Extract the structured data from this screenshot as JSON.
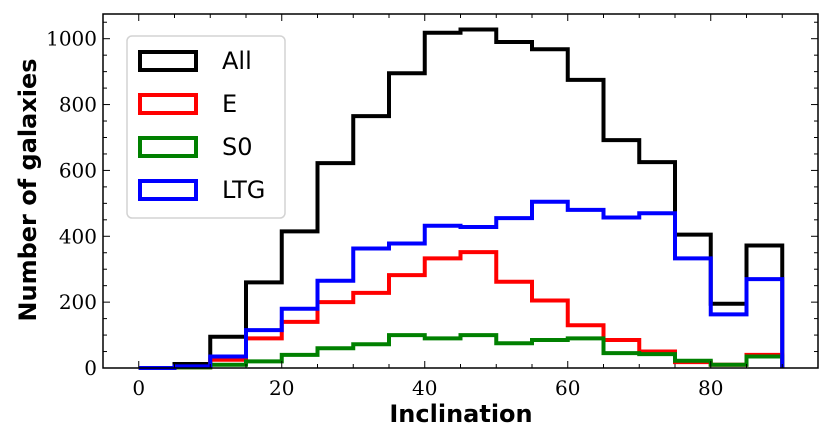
{
  "chart_data": {
    "type": "histogram",
    "title": "",
    "xlabel": "Inclination",
    "ylabel": "Number of galaxies",
    "xlim": [
      -5,
      95
    ],
    "ylim": [
      0,
      1075
    ],
    "xticks": [
      0,
      20,
      40,
      60,
      80
    ],
    "yticks": [
      0,
      200,
      400,
      600,
      800,
      1000
    ],
    "bin_edges": [
      0,
      5,
      10,
      15,
      20,
      25,
      30,
      35,
      40,
      45,
      50,
      55,
      60,
      65,
      70,
      75,
      80,
      85,
      90
    ],
    "series": [
      {
        "name": "All",
        "color": "#000000",
        "values": [
          0,
          12,
          95,
          260,
          415,
          622,
          765,
          895,
          1018,
          1028,
          990,
          968,
          875,
          692,
          625,
          405,
          195,
          372
        ]
      },
      {
        "name": "E",
        "color": "#ff0000",
        "values": [
          0,
          2,
          25,
          90,
          140,
          200,
          228,
          282,
          333,
          352,
          262,
          205,
          130,
          85,
          50,
          18,
          10,
          40
        ]
      },
      {
        "name": "S0",
        "color": "#008000",
        "values": [
          0,
          2,
          10,
          20,
          40,
          60,
          72,
          100,
          90,
          100,
          75,
          85,
          90,
          45,
          42,
          22,
          10,
          35
        ]
      },
      {
        "name": "LTG",
        "color": "#0000ff",
        "values": [
          0,
          5,
          35,
          115,
          180,
          265,
          363,
          378,
          432,
          428,
          455,
          505,
          480,
          457,
          470,
          333,
          163,
          270
        ]
      }
    ],
    "legend": {
      "placement": "upper-left",
      "entries": [
        "All",
        "E",
        "S0",
        "LTG"
      ]
    }
  }
}
